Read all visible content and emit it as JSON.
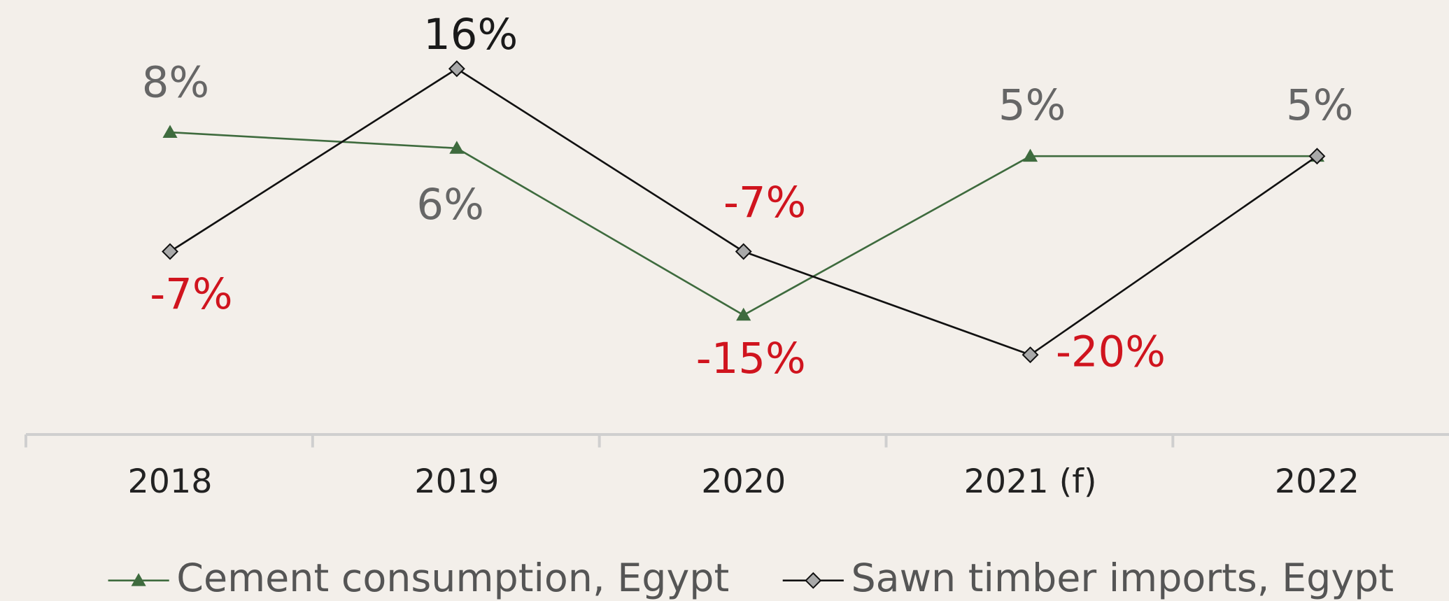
{
  "chart_data": {
    "type": "line",
    "categories": [
      "2018",
      "2019",
      "2020",
      "2021 (f)",
      "2022"
    ],
    "series": [
      {
        "name": "Cement consumption, Egypt",
        "color": "#3e6b3e",
        "marker": "triangle",
        "values": [
          8,
          6,
          -15,
          5,
          5
        ],
        "value_labels": [
          "8%",
          "6%",
          "-15%",
          "5%",
          "5%"
        ]
      },
      {
        "name": "Sawn timber imports, Egypt",
        "color": "#111111",
        "marker": "diamond",
        "values": [
          -7,
          16,
          -7,
          -20,
          5
        ],
        "value_labels": [
          "-7%",
          "16%",
          "-7%",
          "-20%",
          null
        ]
      }
    ],
    "label_colors": {
      "positive": "#666666",
      "negative": "#d0141e"
    },
    "legend": "bottom"
  }
}
